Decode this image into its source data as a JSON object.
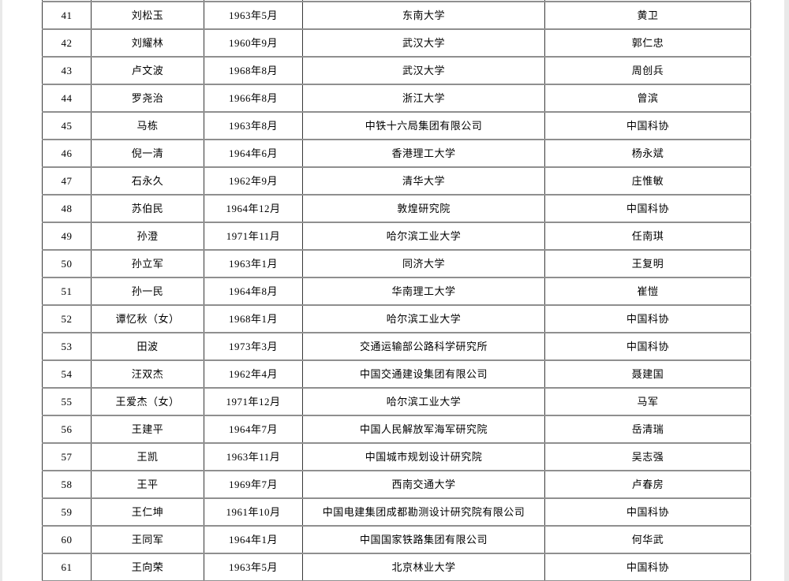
{
  "page": {
    "type": "document-table-page",
    "background_color": "#ffffff",
    "edge_strip_color": "#e9e9e9",
    "horizontal_border_color": "#8f8f8f",
    "vertical_border_color": "#383838",
    "text_color": "#000000"
  },
  "table": {
    "visible_row_range": "41-61",
    "rows": [
      {
        "index": "41",
        "name": "刘松玉",
        "birth_date": "1963年5月",
        "work_unit": "东南大学",
        "nominator": "黄卫"
      },
      {
        "index": "42",
        "name": "刘耀林",
        "birth_date": "1960年9月",
        "work_unit": "武汉大学",
        "nominator": "郭仁忠"
      },
      {
        "index": "43",
        "name": "卢文波",
        "birth_date": "1968年8月",
        "work_unit": "武汉大学",
        "nominator": "周创兵"
      },
      {
        "index": "44",
        "name": "罗尧治",
        "birth_date": "1966年8月",
        "work_unit": "浙江大学",
        "nominator": "曾滨"
      },
      {
        "index": "45",
        "name": "马栋",
        "birth_date": "1963年8月",
        "work_unit": "中铁十六局集团有限公司",
        "nominator": "中国科协"
      },
      {
        "index": "46",
        "name": "倪一清",
        "birth_date": "1964年6月",
        "work_unit": "香港理工大学",
        "nominator": "杨永斌"
      },
      {
        "index": "47",
        "name": "石永久",
        "birth_date": "1962年9月",
        "work_unit": "清华大学",
        "nominator": "庄惟敏"
      },
      {
        "index": "48",
        "name": "苏伯民",
        "birth_date": "1964年12月",
        "work_unit": "敦煌研究院",
        "nominator": "中国科协"
      },
      {
        "index": "49",
        "name": "孙澄",
        "birth_date": "1971年11月",
        "work_unit": "哈尔滨工业大学",
        "nominator": "任南琪"
      },
      {
        "index": "50",
        "name": "孙立军",
        "birth_date": "1963年1月",
        "work_unit": "同济大学",
        "nominator": "王复明"
      },
      {
        "index": "51",
        "name": "孙一民",
        "birth_date": "1964年8月",
        "work_unit": "华南理工大学",
        "nominator": "崔愷"
      },
      {
        "index": "52",
        "name": "谭忆秋（女）",
        "birth_date": "1968年1月",
        "work_unit": "哈尔滨工业大学",
        "nominator": "中国科协"
      },
      {
        "index": "53",
        "name": "田波",
        "birth_date": "1973年3月",
        "work_unit": "交通运输部公路科学研究所",
        "nominator": "中国科协"
      },
      {
        "index": "54",
        "name": "汪双杰",
        "birth_date": "1962年4月",
        "work_unit": "中国交通建设集团有限公司",
        "nominator": "聂建国"
      },
      {
        "index": "55",
        "name": "王爱杰（女）",
        "birth_date": "1971年12月",
        "work_unit": "哈尔滨工业大学",
        "nominator": "马军"
      },
      {
        "index": "56",
        "name": "王建平",
        "birth_date": "1964年7月",
        "work_unit": "中国人民解放军海军研究院",
        "nominator": "岳清瑞"
      },
      {
        "index": "57",
        "name": "王凯",
        "birth_date": "1963年11月",
        "work_unit": "中国城市规划设计研究院",
        "nominator": "吴志强"
      },
      {
        "index": "58",
        "name": "王平",
        "birth_date": "1969年7月",
        "work_unit": "西南交通大学",
        "nominator": "卢春房"
      },
      {
        "index": "59",
        "name": "王仁坤",
        "birth_date": "1961年10月",
        "work_unit": "中国电建集团成都勘测设计研究院有限公司",
        "nominator": "中国科协"
      },
      {
        "index": "60",
        "name": "王同军",
        "birth_date": "1964年1月",
        "work_unit": "中国国家铁路集团有限公司",
        "nominator": "何华武"
      },
      {
        "index": "61",
        "name": "王向荣",
        "birth_date": "1963年5月",
        "work_unit": "北京林业大学",
        "nominator": "中国科协"
      }
    ]
  }
}
